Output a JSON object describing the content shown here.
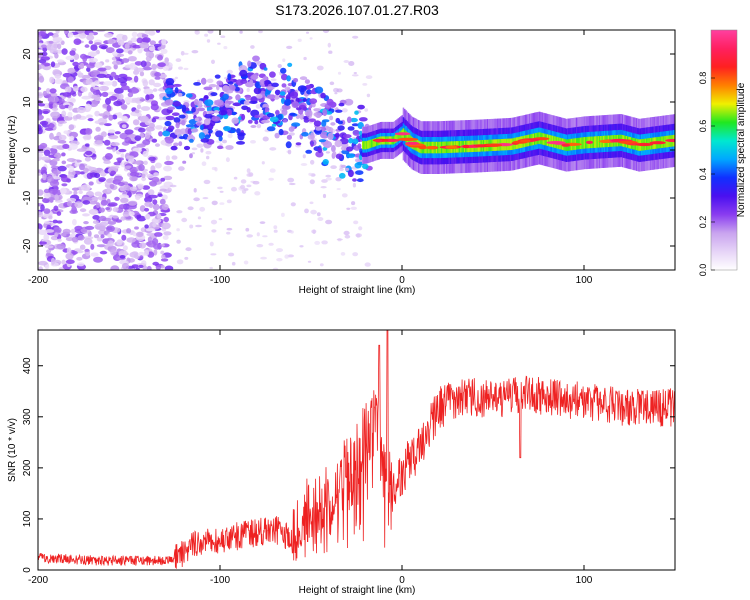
{
  "title": "S173.2026.107.01.27.R03",
  "colors": {
    "frame": "#000000",
    "snr_line": "#ee2222",
    "colormap": [
      "#ffffff",
      "#e6d4f7",
      "#c9a4ef",
      "#8a3df0",
      "#4a10f0",
      "#1030ff",
      "#00a8ff",
      "#00e8d0",
      "#20e820",
      "#f0f000",
      "#ff8000",
      "#ff2020",
      "#ff2060",
      "#ff40a0"
    ]
  },
  "chart_data": [
    {
      "type": "heatmap",
      "title": "S173.2026.107.01.27.R03",
      "xlabel": "Height of straight line (km)",
      "ylabel": "Frequency (Hz)",
      "xlim": [
        -200,
        150
      ],
      "ylim": [
        -25,
        25
      ],
      "xticks": [
        -200,
        -100,
        0,
        100
      ],
      "yticks": [
        -20,
        -10,
        0,
        10,
        20
      ],
      "colorbar": {
        "label": "Normalized spectral amplitude",
        "range": [
          0,
          1
        ],
        "ticks": [
          "0.0",
          "0.2",
          "0.4",
          "0.6",
          "0.8"
        ]
      },
      "ridge": {
        "x": [
          -20,
          -12,
          -5,
          0,
          5,
          10,
          20,
          40,
          60,
          75,
          80,
          90,
          100,
          120,
          130,
          150
        ],
        "y": [
          1,
          2,
          2,
          3.5,
          1.5,
          0.5,
          0.5,
          0.8,
          1.2,
          2.5,
          2,
          1,
          1.5,
          2,
          1,
          2
        ]
      },
      "scatter_band": {
        "x": [
          -130,
          -120,
          -100,
          -80,
          -60,
          -45,
          -35,
          -25
        ],
        "y": [
          8,
          6,
          7,
          12,
          9,
          5,
          3,
          1
        ]
      }
    },
    {
      "type": "line",
      "xlabel": "Height of straight line (km)",
      "ylabel": "SNR (10 * v/v)",
      "xlim": [
        -200,
        150
      ],
      "ylim": [
        0,
        470
      ],
      "xticks": [
        -200,
        -100,
        0,
        100
      ],
      "yticks": [
        0,
        100,
        200,
        300,
        400
      ],
      "series": [
        {
          "name": "SNR",
          "x": [
            -200,
            -180,
            -160,
            -140,
            -125,
            -115,
            -100,
            -85,
            -70,
            -60,
            -50,
            -40,
            -30,
            -20,
            -14,
            -10,
            -5,
            0,
            5,
            10,
            15,
            20,
            25,
            30,
            40,
            50,
            60,
            70,
            80,
            90,
            100,
            110,
            120,
            130,
            140,
            150
          ],
          "y": [
            25,
            20,
            18,
            18,
            20,
            50,
            60,
            70,
            80,
            60,
            130,
            150,
            200,
            260,
            300,
            210,
            160,
            190,
            220,
            240,
            280,
            310,
            330,
            335,
            340,
            330,
            340,
            345,
            340,
            335,
            330,
            325,
            320,
            320,
            315,
            320
          ]
        }
      ]
    }
  ]
}
